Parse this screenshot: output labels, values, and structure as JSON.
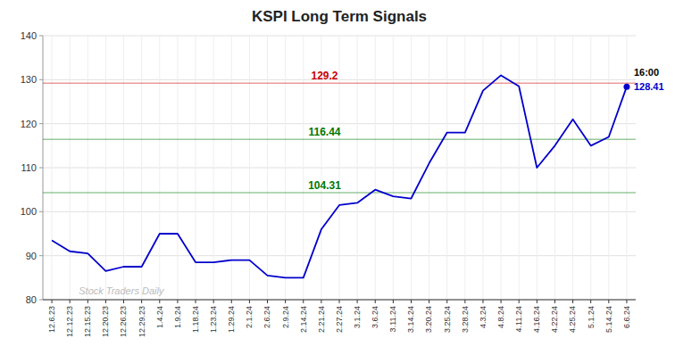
{
  "chart_data": {
    "type": "line",
    "title": "KSPI Long Term Signals",
    "categories": [
      "12.6.23",
      "12.12.23",
      "12.15.23",
      "12.20.23",
      "12.26.23",
      "12.29.23",
      "1.4.24",
      "1.9.24",
      "1.18.24",
      "1.23.24",
      "1.29.24",
      "2.1.24",
      "2.6.24",
      "2.9.24",
      "2.14.24",
      "2.21.24",
      "2.27.24",
      "3.1.24",
      "3.6.24",
      "3.11.24",
      "3.14.24",
      "3.20.24",
      "3.25.24",
      "3.28.24",
      "4.3.24",
      "4.8.24",
      "4.11.24",
      "4.16.24",
      "4.22.24",
      "4.25.24",
      "5.1.24",
      "5.14.24",
      "6.6.24"
    ],
    "values": [
      93.5,
      91.0,
      90.5,
      86.5,
      87.5,
      87.5,
      95.0,
      95.0,
      88.5,
      88.5,
      89.0,
      89.0,
      85.5,
      85.0,
      85.0,
      96.0,
      101.5,
      102.0,
      105.0,
      103.5,
      103.0,
      111.0,
      118.0,
      118.0,
      127.5,
      131.0,
      128.5,
      110.0,
      115.0,
      121.0,
      115.0,
      117.0,
      128.41
    ],
    "color": "#0000cc",
    "ylim": [
      80,
      140
    ],
    "yticks": [
      80,
      90,
      100,
      110,
      120,
      130,
      140
    ],
    "grid": true,
    "reference_lines": [
      {
        "value": 129.2,
        "label": "129.2",
        "color": "#cc0000"
      },
      {
        "value": 116.44,
        "label": "116.44",
        "color": "#007700"
      },
      {
        "value": 104.31,
        "label": "104.31",
        "color": "#007700"
      }
    ],
    "annotations": [
      {
        "text": "16:00",
        "color": "#000000"
      },
      {
        "text": "128.41",
        "color": "#0000cc"
      },
      {
        "text": "Stock Traders Daily",
        "color": "#bbbbbb"
      }
    ]
  }
}
